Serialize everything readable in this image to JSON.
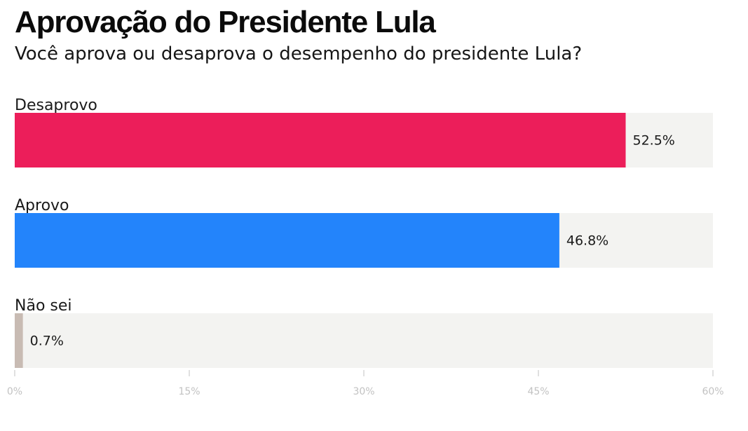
{
  "header": {
    "title": "Aprovação do Presidente Lula",
    "subtitle": "Você aprova ou desaprova o desempenho do presidente Lula?"
  },
  "colors": {
    "track": "#f3f3f1",
    "tick": "#c2c2c2",
    "desaprovo": "#ec1e5a",
    "aprovo": "#2384fb",
    "nao_sei": "#c8bbb3"
  },
  "chart_data": {
    "type": "bar",
    "orientation": "horizontal",
    "title": "Aprovação do Presidente Lula",
    "subtitle": "Você aprova ou desaprova o desempenho do presidente Lula?",
    "categories": [
      "Desaprovo",
      "Aprovo",
      "Não sei"
    ],
    "values": [
      52.5,
      46.8,
      0.7
    ],
    "value_labels": [
      "52.5%",
      "46.8%",
      "0.7%"
    ],
    "bar_colors": [
      "#ec1e5a",
      "#2384fb",
      "#c8bbb3"
    ],
    "xlim": [
      0,
      60
    ],
    "ticks": [
      0,
      15,
      30,
      45,
      60
    ],
    "tick_labels": [
      "0%",
      "15%",
      "30%",
      "45%",
      "60%"
    ],
    "xlabel": "",
    "ylabel": "",
    "grid": false,
    "legend": "none"
  }
}
